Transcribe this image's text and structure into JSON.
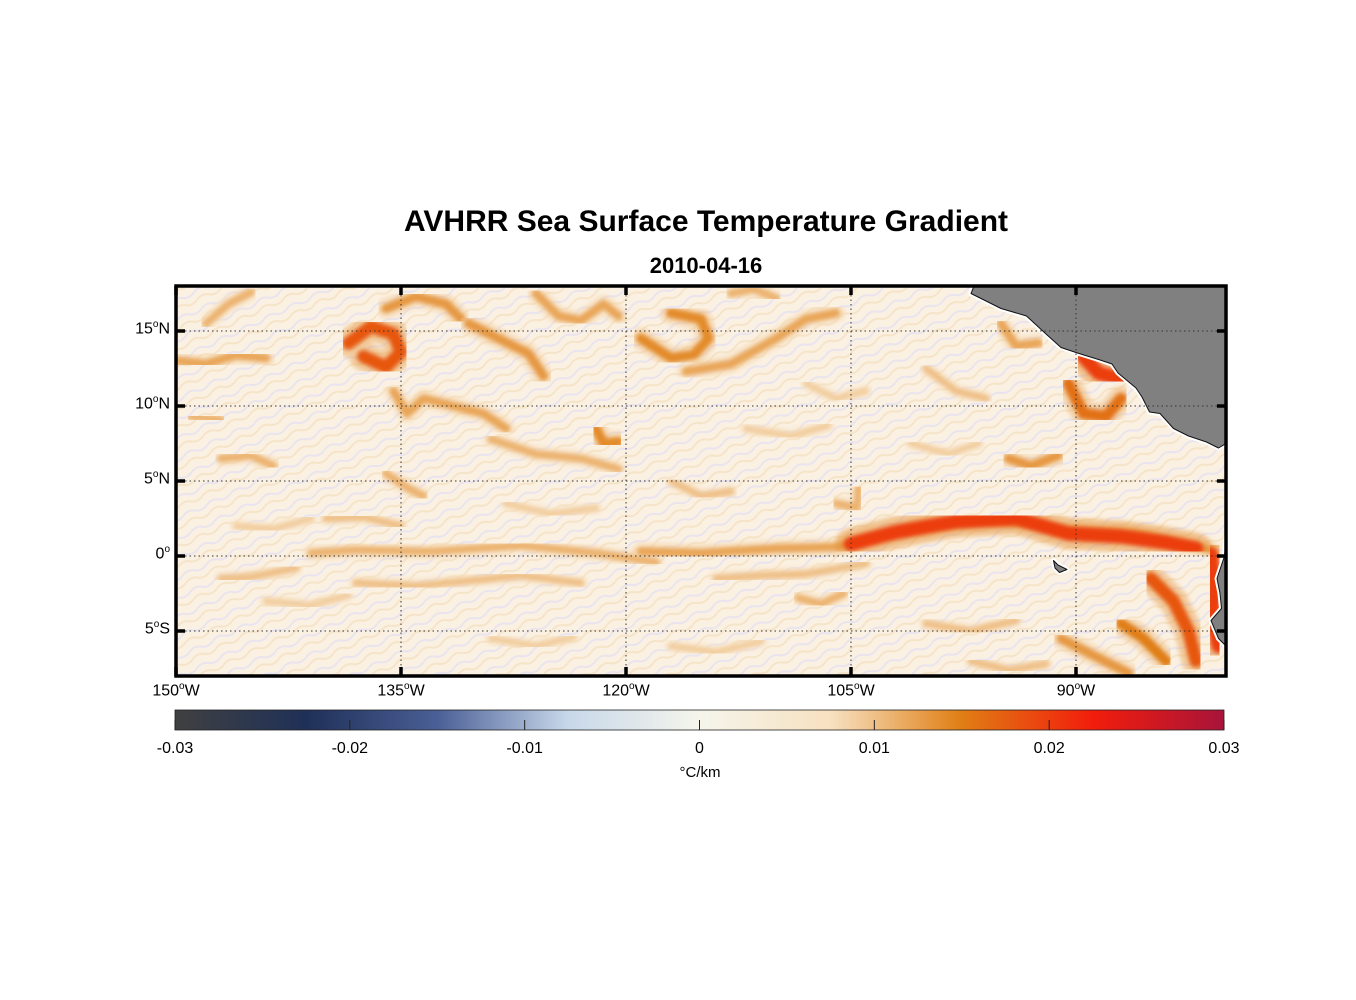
{
  "title": "AVHRR Sea Surface Temperature Gradient",
  "subtitle": "2010-04-16",
  "map": {
    "extent": {
      "lon_min": -150,
      "lon_max": -80,
      "lat_min": -8,
      "lat_max": 18
    },
    "graticule": "dotted",
    "land_color": "#808080",
    "lat_ticks": [
      {
        "value": 15,
        "deg": "15",
        "hemi": "N"
      },
      {
        "value": 10,
        "deg": "10",
        "hemi": "N"
      },
      {
        "value": 5,
        "deg": "5",
        "hemi": "N"
      },
      {
        "value": 0,
        "deg": "0",
        "hemi": ""
      },
      {
        "value": -5,
        "deg": "5",
        "hemi": "S"
      }
    ],
    "lon_ticks": [
      {
        "value": -150,
        "deg": "150",
        "hemi": "W"
      },
      {
        "value": -135,
        "deg": "135",
        "hemi": "W"
      },
      {
        "value": -120,
        "deg": "120",
        "hemi": "W"
      },
      {
        "value": -105,
        "deg": "105",
        "hemi": "W"
      },
      {
        "value": -90,
        "deg": "90",
        "hemi": "W"
      }
    ],
    "fronts": [
      {
        "level": 0.012,
        "pts": [
          [
            -149.8,
            13
          ],
          [
            -148,
            12.8
          ],
          [
            -146,
            13.4
          ],
          [
            -144,
            13.2
          ]
        ]
      },
      {
        "level": 0.018,
        "pts": [
          [
            -138.5,
            14.2
          ],
          [
            -137,
            15.3
          ],
          [
            -135.5,
            14.8
          ],
          [
            -135,
            13.6
          ],
          [
            -136,
            12.6
          ],
          [
            -137.5,
            13.3
          ]
        ]
      },
      {
        "level": 0.013,
        "pts": [
          [
            -136,
            16.5
          ],
          [
            -134,
            17.3
          ],
          [
            -132,
            16.8
          ],
          [
            -131,
            15.8
          ]
        ]
      },
      {
        "level": 0.012,
        "pts": [
          [
            -135.5,
            11
          ],
          [
            -134.6,
            9.5
          ],
          [
            -133.5,
            10.5
          ],
          [
            -131.5,
            10
          ],
          [
            -129.5,
            9.5
          ],
          [
            -128,
            8.5
          ]
        ]
      },
      {
        "level": 0.013,
        "pts": [
          [
            -130.5,
            15.5
          ],
          [
            -128.5,
            14.5
          ],
          [
            -126.5,
            13.5
          ],
          [
            -125.5,
            12
          ]
        ]
      },
      {
        "level": 0.012,
        "pts": [
          [
            -126,
            17.5
          ],
          [
            -124.5,
            16
          ],
          [
            -123,
            15.7
          ],
          [
            -121.5,
            16.8
          ],
          [
            -120.5,
            16
          ]
        ]
      },
      {
        "level": 0.014,
        "pts": [
          [
            -119,
            14.5
          ],
          [
            -117,
            13.2
          ],
          [
            -115.5,
            13.4
          ],
          [
            -114.5,
            14.5
          ],
          [
            -115,
            15.8
          ],
          [
            -117,
            16.2
          ]
        ]
      },
      {
        "level": 0.012,
        "pts": [
          [
            -116,
            12.3
          ],
          [
            -113,
            12.8
          ],
          [
            -110,
            14.5
          ],
          [
            -108,
            15.8
          ],
          [
            -106,
            16.2
          ]
        ]
      },
      {
        "level": 0.011,
        "pts": [
          [
            -113,
            17.5
          ],
          [
            -111.5,
            17.8
          ],
          [
            -110,
            17.2
          ]
        ]
      },
      {
        "level": 0.014,
        "pts": [
          [
            -122,
            8.5
          ],
          [
            -121.5,
            7.5
          ],
          [
            -120.5,
            7.6
          ]
        ]
      },
      {
        "level": 0.011,
        "pts": [
          [
            -129,
            7.8
          ],
          [
            -126,
            6.8
          ],
          [
            -123,
            6.5
          ],
          [
            -120.5,
            5.8
          ]
        ]
      },
      {
        "level": 0.011,
        "pts": [
          [
            -149,
            9.3
          ],
          [
            -147,
            9.1
          ]
        ]
      },
      {
        "level": 0.011,
        "pts": [
          [
            -147,
            6.5
          ],
          [
            -145,
            6.7
          ],
          [
            -143.5,
            6
          ]
        ]
      },
      {
        "level": 0.011,
        "pts": [
          [
            -136,
            5.5
          ],
          [
            -134.5,
            4.5
          ],
          [
            -133.5,
            4
          ]
        ]
      },
      {
        "level": 0.01,
        "pts": [
          [
            -140,
            2.5
          ],
          [
            -137.5,
            2.6
          ],
          [
            -135,
            2
          ]
        ]
      },
      {
        "level": 0.011,
        "pts": [
          [
            -141,
            0.2
          ],
          [
            -138,
            0.4
          ],
          [
            -133,
            0.3
          ],
          [
            -127,
            0.7
          ],
          [
            -122,
            0.2
          ],
          [
            -118,
            -0.4
          ]
        ]
      },
      {
        "level": 0.01,
        "pts": [
          [
            -147,
            -1.5
          ],
          [
            -145,
            -1.4
          ],
          [
            -142,
            -0.8
          ]
        ]
      },
      {
        "level": 0.01,
        "pts": [
          [
            -138,
            -1.8
          ],
          [
            -134,
            -2
          ],
          [
            -130,
            -1.6
          ],
          [
            -127,
            -1.3
          ],
          [
            -123,
            -1.8
          ]
        ]
      },
      {
        "level": 0.01,
        "pts": [
          [
            -114,
            -1.5
          ],
          [
            -111,
            -1.3
          ],
          [
            -108,
            -1.2
          ],
          [
            -104,
            -0.5
          ]
        ]
      },
      {
        "level": 0.01,
        "pts": [
          [
            -117,
            5
          ],
          [
            -115,
            4
          ],
          [
            -113,
            4.3
          ]
        ]
      },
      {
        "level": 0.012,
        "pts": [
          [
            -119,
            0.3
          ],
          [
            -115,
            0.2
          ],
          [
            -110,
            0.5
          ],
          [
            -106,
            0.6
          ],
          [
            -103,
            1.3
          ],
          [
            -100,
            1.9
          ],
          [
            -96,
            2.4
          ],
          [
            -93,
            2.2
          ],
          [
            -91,
            1.7
          ],
          [
            -89,
            1.6
          ],
          [
            -86,
            1.5
          ],
          [
            -83,
            0.8
          ],
          [
            -81,
            0.4
          ]
        ]
      },
      {
        "level": 0.02,
        "pts": [
          [
            -105,
            0.8
          ],
          [
            -102,
            1.6
          ],
          [
            -98,
            2.3
          ],
          [
            -94,
            2.5
          ],
          [
            -90.5,
            1.5
          ],
          [
            -87,
            1.3
          ],
          [
            -84,
            0.9
          ],
          [
            -82,
            0.5
          ]
        ]
      },
      {
        "level": 0.02,
        "pts": [
          [
            -81,
            0.1
          ],
          [
            -80.8,
            -2
          ],
          [
            -80.9,
            -4
          ],
          [
            -80.5,
            -6
          ]
        ]
      },
      {
        "level": 0.018,
        "pts": [
          [
            -85,
            -1.5
          ],
          [
            -83.5,
            -3
          ],
          [
            -82.5,
            -5
          ],
          [
            -82,
            -7
          ]
        ]
      },
      {
        "level": 0.015,
        "pts": [
          [
            -87,
            -4.5
          ],
          [
            -85.5,
            -5.5
          ],
          [
            -84,
            -7
          ]
        ]
      },
      {
        "level": 0.013,
        "pts": [
          [
            -91,
            -5.5
          ],
          [
            -88.5,
            -6.8
          ],
          [
            -86.5,
            -7.8
          ]
        ]
      },
      {
        "level": 0.013,
        "pts": [
          [
            -94.5,
            6.5
          ],
          [
            -93,
            6
          ],
          [
            -91.2,
            6.7
          ]
        ]
      },
      {
        "level": 0.016,
        "pts": [
          [
            -90.5,
            11.5
          ],
          [
            -89.5,
            9.5
          ],
          [
            -88,
            9.3
          ],
          [
            -87,
            10.5
          ]
        ]
      },
      {
        "level": 0.02,
        "pts": [
          [
            -89.5,
            13.3
          ],
          [
            -88.5,
            12.2
          ],
          [
            -87,
            11.8
          ],
          [
            -86,
            12.5
          ]
        ]
      },
      {
        "level": 0.012,
        "pts": [
          [
            -95,
            15.5
          ],
          [
            -94,
            14
          ],
          [
            -92.5,
            14.2
          ]
        ]
      },
      {
        "level": 0.01,
        "pts": [
          [
            -100,
            12.5
          ],
          [
            -98,
            11
          ],
          [
            -96,
            10.5
          ]
        ]
      },
      {
        "level": 0.011,
        "pts": [
          [
            -106,
            3.5
          ],
          [
            -104.6,
            3.2
          ],
          [
            -104.5,
            4.5
          ]
        ]
      },
      {
        "level": 0.011,
        "pts": [
          [
            -108.5,
            -2.8
          ],
          [
            -107,
            -3.2
          ],
          [
            -105.5,
            -2.5
          ]
        ]
      },
      {
        "level": 0.009,
        "pts": [
          [
            -146,
            2
          ],
          [
            -143.5,
            1.8
          ],
          [
            -141,
            2.5
          ]
        ]
      },
      {
        "level": 0.009,
        "pts": [
          [
            -144,
            -3
          ],
          [
            -141,
            -3.3
          ],
          [
            -138.5,
            -2.6
          ]
        ]
      },
      {
        "level": 0.009,
        "pts": [
          [
            -128,
            3.5
          ],
          [
            -125,
            2.8
          ],
          [
            -122,
            3.2
          ]
        ]
      },
      {
        "level": 0.009,
        "pts": [
          [
            -112,
            8.5
          ],
          [
            -109,
            8
          ],
          [
            -106.5,
            8.7
          ]
        ]
      },
      {
        "level": 0.01,
        "pts": [
          [
            -100,
            -4.5
          ],
          [
            -97,
            -5
          ],
          [
            -94,
            -4.3
          ]
        ]
      },
      {
        "level": 0.01,
        "pts": [
          [
            -97,
            -7
          ],
          [
            -94.5,
            -7.6
          ],
          [
            -92,
            -7.2
          ]
        ]
      },
      {
        "level": 0.009,
        "pts": [
          [
            -129,
            -5.5
          ],
          [
            -126,
            -6
          ],
          [
            -123.5,
            -5.4
          ]
        ]
      },
      {
        "level": 0.009,
        "pts": [
          [
            -117,
            -6
          ],
          [
            -114,
            -6.4
          ],
          [
            -111,
            -5.7
          ]
        ]
      },
      {
        "level": 0.011,
        "pts": [
          [
            -148,
            15.5
          ],
          [
            -146.5,
            16.8
          ],
          [
            -145,
            17.6
          ]
        ]
      },
      {
        "level": 0.009,
        "pts": [
          [
            -101,
            7.5
          ],
          [
            -98.5,
            6.8
          ],
          [
            -96.5,
            7.5
          ]
        ]
      },
      {
        "level": 0.009,
        "pts": [
          [
            -108,
            11.5
          ],
          [
            -106,
            10.5
          ],
          [
            -104,
            11
          ]
        ]
      }
    ],
    "land": [
      {
        "name": "central-america",
        "pts": [
          [
            -96.8,
            18
          ],
          [
            -97,
            17.5
          ],
          [
            -96,
            17
          ],
          [
            -95,
            16.5
          ],
          [
            -93.3,
            16
          ],
          [
            -92,
            14.8
          ],
          [
            -91,
            13.9
          ],
          [
            -89.8,
            13.5
          ],
          [
            -88.5,
            13.1
          ],
          [
            -87.6,
            12.8
          ],
          [
            -87.2,
            12.2
          ],
          [
            -86,
            11.2
          ],
          [
            -85.6,
            10.6
          ],
          [
            -85.1,
            9.6
          ],
          [
            -84.4,
            9.5
          ],
          [
            -83.5,
            8.5
          ],
          [
            -82.5,
            8
          ],
          [
            -81.3,
            7.6
          ],
          [
            -80.5,
            7.2
          ],
          [
            -80,
            7.5
          ],
          [
            -80,
            18
          ]
        ]
      },
      {
        "name": "south-america",
        "pts": [
          [
            -80,
            1.2
          ],
          [
            -80.1,
            0
          ],
          [
            -80.6,
            -1.5
          ],
          [
            -80.4,
            -2.5
          ],
          [
            -80.3,
            -3.5
          ],
          [
            -81,
            -4.3
          ],
          [
            -80.5,
            -5.5
          ],
          [
            -80,
            -6
          ],
          [
            -80,
            1.2
          ]
        ]
      },
      {
        "name": "galapagos",
        "pts": [
          [
            -91.5,
            -0.3
          ],
          [
            -91.2,
            -0.6
          ],
          [
            -90.6,
            -0.9
          ],
          [
            -91.1,
            -1.1
          ],
          [
            -91.4,
            -0.8
          ]
        ]
      }
    ]
  },
  "colorbar": {
    "min": -0.03,
    "max": 0.03,
    "ticks": [
      "-0.03",
      "-0.02",
      "-0.01",
      "0",
      "0.01",
      "0.02",
      "0.03"
    ],
    "unit": "°C/km",
    "colors": [
      "#404040",
      "#1f3058",
      "#4a5f96",
      "#c8d8ea",
      "#f5f5ec",
      "#f7e1c0",
      "#e07e14",
      "#f21d0c",
      "#a8143a"
    ]
  }
}
